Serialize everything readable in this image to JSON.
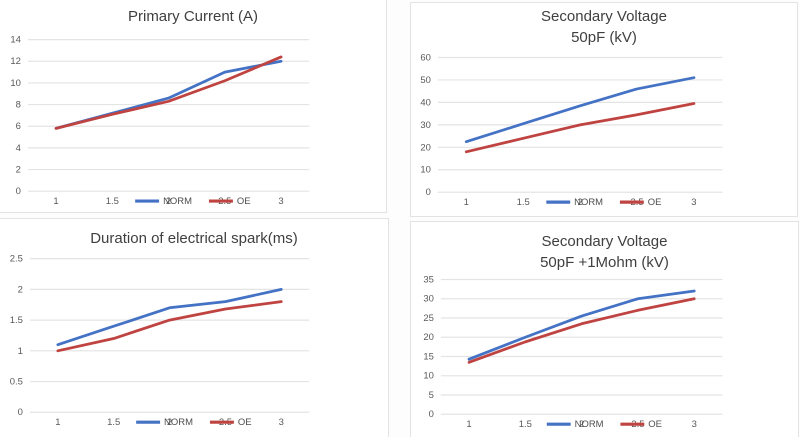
{
  "colors": {
    "norm": "#4472c4",
    "oe": "#bf4340",
    "gridline": "#e4e4e4",
    "axis_text": "#595959",
    "title_text": "#3f3f3f",
    "panel_border": "#e3e3e3"
  },
  "legend": {
    "norm_label": "NORM",
    "oe_label": "OE",
    "position": "bottom-center"
  },
  "chart_data": [
    {
      "type": "line",
      "title": "Primary Current (A)",
      "x": [
        1,
        1.5,
        2,
        2.5,
        3
      ],
      "x_tick_labels": [
        "1",
        "1.5",
        "2",
        "2.5",
        "3"
      ],
      "series": [
        {
          "name": "NORM",
          "color_key": "norm",
          "values": [
            5.8,
            7.2,
            8.6,
            11,
            12
          ]
        },
        {
          "name": "OE",
          "color_key": "oe",
          "values": [
            5.8,
            7.1,
            8.3,
            10.2,
            12.4
          ]
        }
      ],
      "ylim": [
        0,
        14
      ],
      "ytick_step": 2,
      "grid": true,
      "legend_position": "bottom-center-overlapping-x-axis"
    },
    {
      "type": "line",
      "title": "Secondary Voltage\n50pF (kV)",
      "x": [
        1,
        1.5,
        2,
        2.5,
        3
      ],
      "x_tick_labels": [
        "1",
        "1.5",
        "2",
        "2.5",
        "3"
      ],
      "series": [
        {
          "name": "NORM",
          "color_key": "norm",
          "values": [
            22.5,
            30.5,
            38.5,
            46,
            51
          ]
        },
        {
          "name": "OE",
          "color_key": "oe",
          "values": [
            18,
            24,
            30,
            34.5,
            39.5
          ]
        }
      ],
      "ylim": [
        0,
        60
      ],
      "ytick_step": 10,
      "grid": true,
      "legend_position": "bottom-center-overlapping-x-axis"
    },
    {
      "type": "line",
      "title": "Duration of electrical spark(ms)",
      "x": [
        1,
        1.5,
        2,
        2.5,
        3
      ],
      "x_tick_labels": [
        "1",
        "1.5",
        "2",
        "2.5",
        "3"
      ],
      "series": [
        {
          "name": "NORM",
          "color_key": "norm",
          "values": [
            1.1,
            1.4,
            1.7,
            1.8,
            2.0
          ]
        },
        {
          "name": "OE",
          "color_key": "oe",
          "values": [
            1.0,
            1.2,
            1.5,
            1.68,
            1.8
          ]
        }
      ],
      "ylim": [
        0,
        2.5
      ],
      "ytick_step": 0.5,
      "grid": true,
      "legend_position": "bottom-center-overlapping-x-axis"
    },
    {
      "type": "line",
      "title": "Secondary Voltage\n50pF +1Mohm (kV)",
      "x": [
        1,
        1.5,
        2,
        2.5,
        3
      ],
      "x_tick_labels": [
        "1",
        "1.5",
        "2",
        "2.5",
        "3"
      ],
      "series": [
        {
          "name": "NORM",
          "color_key": "norm",
          "values": [
            14.3,
            20,
            25.5,
            30,
            32
          ]
        },
        {
          "name": "OE",
          "color_key": "oe",
          "values": [
            13.5,
            18.8,
            23.5,
            27,
            30
          ]
        }
      ],
      "ylim": [
        0,
        35
      ],
      "ytick_step": 5,
      "grid": true,
      "legend_position": "bottom-center-overlapping-x-axis"
    }
  ]
}
